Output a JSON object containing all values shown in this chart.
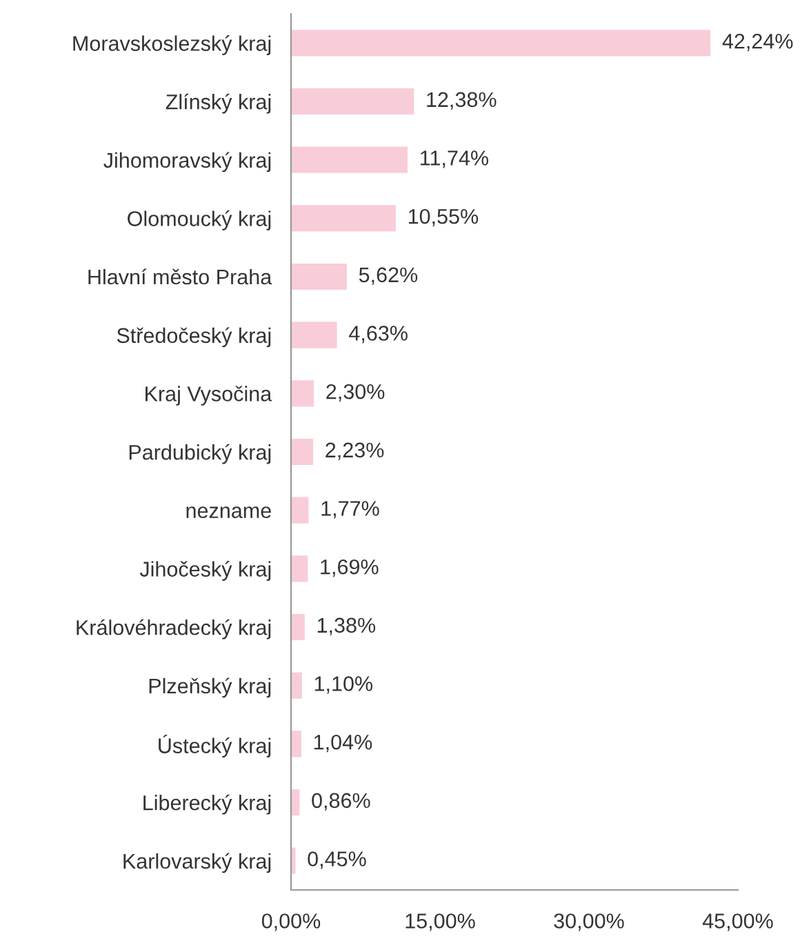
{
  "chart_data": {
    "type": "bar",
    "orientation": "horizontal",
    "categories": [
      "Moravskoslezský kraj",
      "Zlínský kraj",
      "Jihomoravský kraj",
      "Olomoucký kraj",
      "Hlavní město Praha",
      "Středočeský kraj",
      "Kraj Vysočina",
      "Pardubický kraj",
      "nezname",
      "Jihočeský kraj",
      "Královéhradecký kraj",
      "Plzeňský kraj",
      "Ústecký kraj",
      "Liberecký kraj",
      "Karlovarský kraj"
    ],
    "values": [
      42.24,
      12.38,
      11.74,
      10.55,
      5.62,
      4.63,
      2.3,
      2.23,
      1.77,
      1.69,
      1.38,
      1.1,
      1.04,
      0.86,
      0.45
    ],
    "value_labels": [
      "42,24%",
      "12,38%",
      "11,74%",
      "10,55%",
      "5,62%",
      "4,63%",
      "2,30%",
      "2,23%",
      "1,77%",
      "1,69%",
      "1,38%",
      "1,10%",
      "1,04%",
      "0,86%",
      "0,45%"
    ],
    "color": "#f8cdd8",
    "xlim": [
      0,
      45
    ],
    "xticks": [
      {
        "value": 0,
        "label": "0,00%"
      },
      {
        "value": 15,
        "label": "15,00%"
      },
      {
        "value": 30,
        "label": "30,00%"
      },
      {
        "value": 45,
        "label": "45,00%"
      }
    ],
    "grid": false,
    "legend": false
  }
}
